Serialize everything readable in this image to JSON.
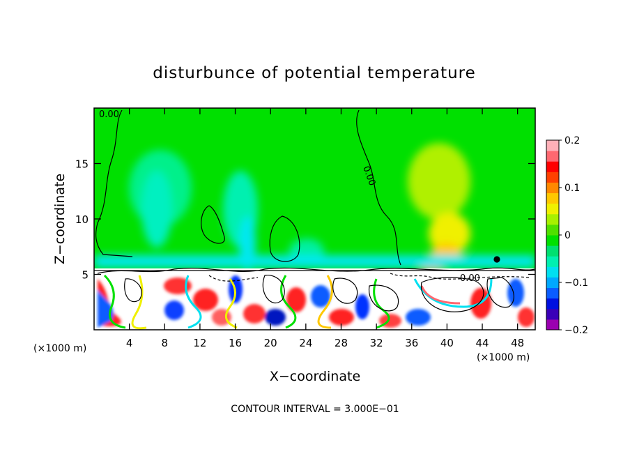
{
  "chart_data": {
    "type": "heatmap",
    "title": "disturbunce of potential temperature",
    "xlabel": "X−coordinate",
    "ylabel": "Z−coordinate",
    "x_unit_left": "(×1000 m)",
    "x_unit_right": "(×1000 m)",
    "footer": "CONTOUR INTERVAL = 3.000E−01",
    "xlim": [
      0,
      50
    ],
    "ylim": [
      0,
      20
    ],
    "x_ticks": [
      4,
      8,
      12,
      16,
      20,
      24,
      28,
      32,
      36,
      40,
      44,
      48
    ],
    "y_ticks": [
      5,
      10,
      15
    ],
    "colorbar": {
      "vmin": -0.2,
      "vmax": 0.2,
      "tick_values": [
        0.2,
        0.1,
        0,
        -0.1,
        -0.2
      ],
      "tick_labels": [
        "0.2",
        "0.1",
        "0",
        "−0.1",
        "−0.2"
      ],
      "colors": [
        "#9a00b0",
        "#3a00b8",
        "#0010e0",
        "#0a5cff",
        "#00a8ff",
        "#00e0f0",
        "#00f0b0",
        "#00e070",
        "#00e000",
        "#50e000",
        "#a8f000",
        "#f0f000",
        "#ffc800",
        "#ff8800",
        "#ff4000",
        "#ff0000",
        "#ff6870",
        "#ffb0b8"
      ]
    },
    "contour_labels": [
      {
        "text": "0.00",
        "x": 1.6,
        "z": 19.3,
        "rotate": 0
      },
      {
        "text": "0.00",
        "x": 30.8,
        "z": 14.3,
        "rotate": 70
      },
      {
        "text": "0.00",
        "x": 43.0,
        "z": 4.8,
        "rotate": 0
      }
    ]
  }
}
